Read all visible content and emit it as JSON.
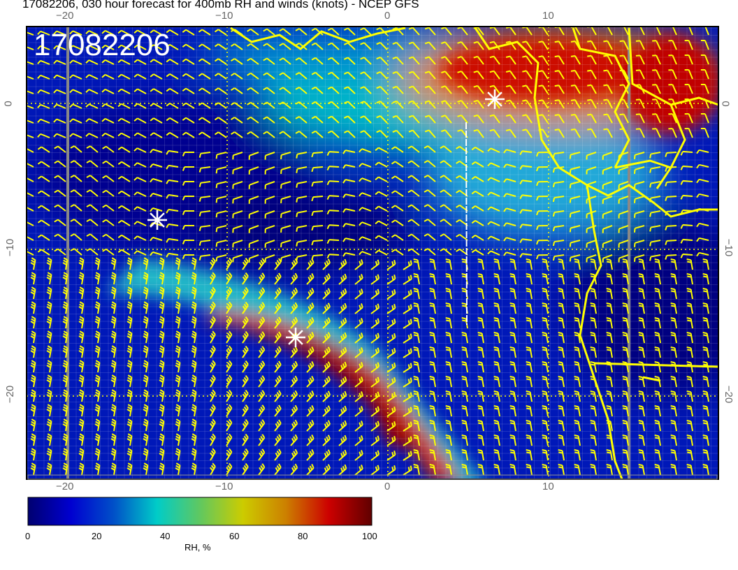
{
  "title": "17082206, 030 hour forecast for 400mb RH and winds (knots) - NCEP GFS",
  "stamp": "17082206",
  "lon_ticks": [
    "−20",
    "−10",
    "0",
    "10"
  ],
  "lat_ticks": [
    "0",
    "−10",
    "−20"
  ],
  "colorbar": {
    "label": "RH, %",
    "ticks": [
      "0",
      "20",
      "40",
      "60",
      "80",
      "100"
    ],
    "colors": [
      "#000070",
      "#0000d0",
      "#0050c8",
      "#00ccc8",
      "#60c860",
      "#cccc00",
      "#cc8000",
      "#cc0000",
      "#600000"
    ]
  },
  "colors": {
    "wind_barbs": "#ffff00",
    "coastline": "#ffff00",
    "markers": "#ffffff"
  }
}
